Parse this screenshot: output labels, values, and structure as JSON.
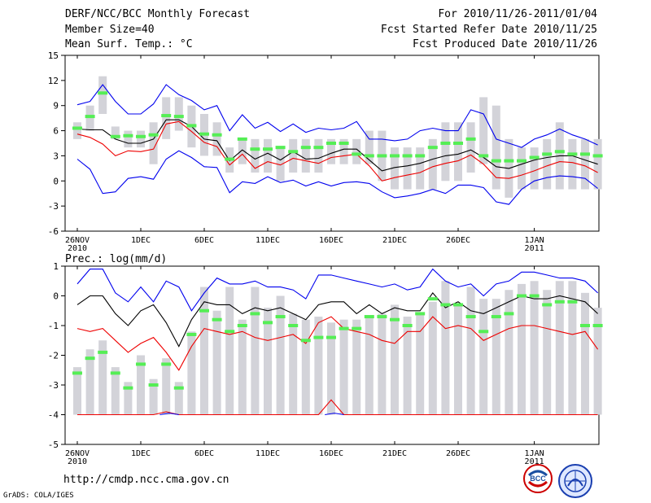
{
  "header": {
    "title": "DERF/NCC/BCC Monthly Forecast",
    "member": "Member Size=40",
    "var1": "Mean Surf. Temp.: °C",
    "period": "For 2010/11/26-2011/01/04",
    "start": "Fcst Started Refer Date 2010/11/25",
    "produced": "Fcst Produced Date 2010/11/26"
  },
  "footer": {
    "url": "http://cmdp.ncc.cma.gov.cn",
    "grads": "GrADS: COLA/IGES",
    "logo_text": "BCC"
  },
  "colors": {
    "box": "#d3d3d9",
    "median": "#55ee55",
    "mean": "#000000",
    "upper": "#0000ee",
    "lower": "#ee0000"
  },
  "chart_data": [
    {
      "type": "box",
      "title": "Mean Surf. Temp.: °C",
      "ylim": [
        -6,
        15
      ],
      "yticks": [
        -6,
        -3,
        0,
        3,
        6,
        9,
        12,
        15
      ],
      "xticks": [
        {
          "day": 0,
          "label": "26NOV",
          "label2": "2010"
        },
        {
          "day": 5,
          "label": "1DEC"
        },
        {
          "day": 10,
          "label": "6DEC"
        },
        {
          "day": 15,
          "label": "11DEC"
        },
        {
          "day": 20,
          "label": "16DEC"
        },
        {
          "day": 25,
          "label": "21DEC"
        },
        {
          "day": 30,
          "label": "26DEC"
        },
        {
          "day": 36,
          "label": "1JAN",
          "label2": "2011"
        }
      ],
      "boxes": [
        [
          5,
          7
        ],
        [
          6,
          9
        ],
        [
          8,
          12.5
        ],
        [
          5,
          6.5
        ],
        [
          4,
          6
        ],
        [
          4,
          6
        ],
        [
          2,
          7
        ],
        [
          5,
          10
        ],
        [
          6,
          10
        ],
        [
          4,
          9
        ],
        [
          3,
          8
        ],
        [
          3,
          7
        ],
        [
          1,
          4
        ],
        [
          2,
          5
        ],
        [
          1,
          5
        ],
        [
          1,
          5
        ],
        [
          0,
          4
        ],
        [
          1,
          5
        ],
        [
          1,
          5
        ],
        [
          1,
          5
        ],
        [
          2,
          5
        ],
        [
          2,
          5
        ],
        [
          2,
          5
        ],
        [
          2,
          6
        ],
        [
          0,
          6
        ],
        [
          -1,
          4
        ],
        [
          -1,
          4
        ],
        [
          -1,
          4
        ],
        [
          -1,
          5
        ],
        [
          0,
          7
        ],
        [
          0,
          7
        ],
        [
          1,
          7
        ],
        [
          2,
          10
        ],
        [
          -1,
          9
        ],
        [
          -2,
          5
        ],
        [
          -1,
          4
        ],
        [
          -1,
          4
        ],
        [
          -1,
          5
        ],
        [
          -1,
          7
        ],
        [
          -1,
          5
        ],
        [
          -1,
          5
        ],
        [
          -1,
          5
        ]
      ],
      "median": [
        6.3,
        7.7,
        10.5,
        5.3,
        5.4,
        5.3,
        5.5,
        7.8,
        7.7,
        6.6,
        5.6,
        5.5,
        2.6,
        5.0,
        3.8,
        3.8,
        4.0,
        3.5,
        4.0,
        4.0,
        4.5,
        4.5,
        3.2,
        3.0,
        3.0,
        3.0,
        3.0,
        3.0,
        4.0,
        4.5,
        4.5,
        5.0,
        3.0,
        2.4,
        2.4,
        2.4,
        2.8,
        3.2,
        3.5,
        3.2,
        3.2,
        3.0
      ],
      "series": [
        {
          "name": "upper",
          "values": [
            9.1,
            9.5,
            11.5,
            9.5,
            8.0,
            8.0,
            9.2,
            11.5,
            10.3,
            9.6,
            8.5,
            9.0,
            6.0,
            7.9,
            6.3,
            7.0,
            5.9,
            6.8,
            5.8,
            6.3,
            6.1,
            6.3,
            7.1,
            5.0,
            5.0,
            4.8,
            5.0,
            6.0,
            6.3,
            6.0,
            6.0,
            8.5,
            8.0,
            5.0,
            4.5,
            4.0,
            5.0,
            5.5,
            6.2,
            5.5,
            5.0,
            4.3
          ]
        },
        {
          "name": "mean",
          "values": [
            6.2,
            6.1,
            6.1,
            5.0,
            4.5,
            4.5,
            5.0,
            7.3,
            7.3,
            6.5,
            5.0,
            4.8,
            2.4,
            3.7,
            2.6,
            3.3,
            2.5,
            3.5,
            2.6,
            2.7,
            3.3,
            3.8,
            3.8,
            2.5,
            1.2,
            1.6,
            1.8,
            2.1,
            2.6,
            3.0,
            3.2,
            3.7,
            2.8,
            1.7,
            1.5,
            2.0,
            2.5,
            2.8,
            3.0,
            3.0,
            2.5,
            2.0
          ]
        },
        {
          "name": "lower",
          "values": [
            5.6,
            5.2,
            4.4,
            3.0,
            3.6,
            3.5,
            3.8,
            6.8,
            7.1,
            5.9,
            4.6,
            4.1,
            1.9,
            3.2,
            1.5,
            2.3,
            1.9,
            2.7,
            2.4,
            2.1,
            2.8,
            3.0,
            3.2,
            1.8,
            0.0,
            0.4,
            0.7,
            1.0,
            1.7,
            2.1,
            2.4,
            3.1,
            2.0,
            0.4,
            0.3,
            0.7,
            1.2,
            1.8,
            2.3,
            2.2,
            1.8,
            1.0
          ]
        },
        {
          "name": "bottom",
          "values": [
            2.6,
            1.4,
            -1.5,
            -1.3,
            0.3,
            0.5,
            0.2,
            2.6,
            3.6,
            2.8,
            1.7,
            1.6,
            -1.4,
            -0.1,
            -0.3,
            0.5,
            -0.2,
            0.1,
            -0.6,
            -0.1,
            -0.6,
            -0.2,
            -0.1,
            -0.3,
            -1.3,
            -2.0,
            -1.8,
            -1.5,
            -1.0,
            -1.5,
            -0.5,
            -0.5,
            -0.8,
            -2.5,
            -2.8,
            -1.0,
            0.0,
            0.4,
            0.6,
            0.5,
            0.3,
            -0.9
          ]
        }
      ]
    },
    {
      "type": "box",
      "title": "Prec.: log(mm/d)",
      "ylim": [
        -5,
        1
      ],
      "yticks": [
        -5,
        -4,
        -3,
        -2,
        -1,
        0,
        1
      ],
      "xticks": [
        {
          "day": 0,
          "label": "26NOV",
          "label2": "2010"
        },
        {
          "day": 5,
          "label": "1DEC"
        },
        {
          "day": 10,
          "label": "6DEC"
        },
        {
          "day": 15,
          "label": "11DEC"
        },
        {
          "day": 20,
          "label": "16DEC"
        },
        {
          "day": 25,
          "label": "21DEC"
        },
        {
          "day": 30,
          "label": "26DEC"
        },
        {
          "day": 36,
          "label": "1JAN",
          "label2": "2011"
        }
      ],
      "boxes": [
        [
          -4,
          -2.4
        ],
        [
          -4,
          -1.8
        ],
        [
          -4,
          -1.5
        ],
        [
          -4,
          -2.4
        ],
        [
          -4,
          -2.9
        ],
        [
          -4,
          -2.0
        ],
        [
          -4,
          -2.8
        ],
        [
          -4,
          -2.1
        ],
        [
          -4,
          -2.9
        ],
        [
          -4,
          -1.2
        ],
        [
          -4,
          0.3
        ],
        [
          -4,
          -0.5
        ],
        [
          -4,
          0.3
        ],
        [
          -4,
          -0.8
        ],
        [
          -4,
          0.3
        ],
        [
          -4,
          -0.4
        ],
        [
          -4,
          0.0
        ],
        [
          -4,
          -0.6
        ],
        [
          -4,
          -0.8
        ],
        [
          -4,
          -0.7
        ],
        [
          -4,
          -0.9
        ],
        [
          -4,
          -0.8
        ],
        [
          -4,
          -0.8
        ],
        [
          -4,
          -0.7
        ],
        [
          -4,
          -0.6
        ],
        [
          -4,
          -0.3
        ],
        [
          -4,
          -0.7
        ],
        [
          -4,
          -0.6
        ],
        [
          -4,
          -0.2
        ],
        [
          -4,
          0.5
        ],
        [
          -4,
          -0.3
        ],
        [
          -4,
          0.3
        ],
        [
          -4,
          -0.1
        ],
        [
          -4,
          -0.1
        ],
        [
          -4,
          0.2
        ],
        [
          -4,
          0.4
        ],
        [
          -4,
          0.5
        ],
        [
          -4,
          0.2
        ],
        [
          -4,
          0.5
        ],
        [
          -4,
          0.5
        ],
        [
          -4,
          0.1
        ],
        [
          -4,
          -0.4
        ]
      ],
      "median": [
        -2.6,
        -2.1,
        -1.9,
        -2.6,
        -3.1,
        -2.3,
        -3.0,
        -2.3,
        -3.1,
        -1.3,
        -0.5,
        -0.8,
        -1.2,
        -1.0,
        -0.6,
        -0.9,
        -0.7,
        -1.0,
        -1.5,
        -1.4,
        -1.4,
        -1.1,
        -1.1,
        -0.7,
        -0.7,
        -0.8,
        -1.0,
        -0.6,
        -0.1,
        -0.3,
        -0.3,
        -0.7,
        -1.2,
        -0.7,
        -0.6,
        0.0,
        0.0,
        -0.3,
        -0.2,
        -0.2,
        -1.0,
        -1.0
      ],
      "series": [
        {
          "name": "upper",
          "values": [
            0.4,
            0.9,
            0.9,
            0.1,
            -0.2,
            0.3,
            -0.2,
            0.5,
            0.3,
            -0.5,
            0.1,
            0.6,
            0.4,
            0.4,
            0.5,
            0.3,
            0.3,
            0.2,
            -0.1,
            0.7,
            0.7,
            0.6,
            0.5,
            0.4,
            0.3,
            0.4,
            0.2,
            0.3,
            0.9,
            0.5,
            0.3,
            0.4,
            0.0,
            0.4,
            0.5,
            0.8,
            0.8,
            0.7,
            0.6,
            0.6,
            0.5,
            0.1
          ]
        },
        {
          "name": "mean",
          "values": [
            -0.3,
            0.0,
            0.0,
            -0.6,
            -1.0,
            -0.5,
            -0.3,
            -0.9,
            -1.7,
            -0.8,
            -0.2,
            -0.3,
            -0.3,
            -0.6,
            -0.4,
            -0.5,
            -0.4,
            -0.6,
            -0.8,
            -0.3,
            -0.2,
            -0.2,
            -0.6,
            -0.3,
            -0.6,
            -0.4,
            -0.5,
            -0.5,
            0.1,
            -0.4,
            -0.2,
            -0.5,
            -0.6,
            -0.4,
            -0.2,
            0.0,
            -0.1,
            -0.1,
            0.0,
            -0.1,
            -0.2,
            -0.6
          ]
        },
        {
          "name": "lower",
          "values": [
            -1.1,
            -1.2,
            -1.1,
            -1.5,
            -1.9,
            -1.6,
            -1.4,
            -1.9,
            -2.5,
            -1.7,
            -1.1,
            -1.2,
            -1.3,
            -1.2,
            -1.4,
            -1.5,
            -1.4,
            -1.3,
            -1.6,
            -0.9,
            -0.7,
            -1.1,
            -1.2,
            -1.3,
            -1.5,
            -1.6,
            -1.2,
            -1.2,
            -0.7,
            -1.1,
            -1.0,
            -1.1,
            -1.5,
            -1.3,
            -1.1,
            -1.0,
            -1.0,
            -1.1,
            -1.2,
            -1.3,
            -1.2,
            -1.8
          ]
        },
        {
          "name": "bottom",
          "values": [
            -4,
            -4,
            -4,
            -4,
            -4,
            -4,
            -4,
            -3.9,
            -4,
            -4,
            -4,
            -4,
            -4,
            -4,
            -4,
            -4,
            -4,
            -4,
            -4,
            -4,
            -3.5,
            -4,
            -4,
            -4,
            -4,
            -4,
            -4,
            -4,
            -4,
            -4,
            -4,
            -4,
            -4,
            -4,
            -4,
            -4,
            -4,
            -4,
            -4,
            -4,
            -4,
            -4
          ]
        }
      ]
    }
  ]
}
